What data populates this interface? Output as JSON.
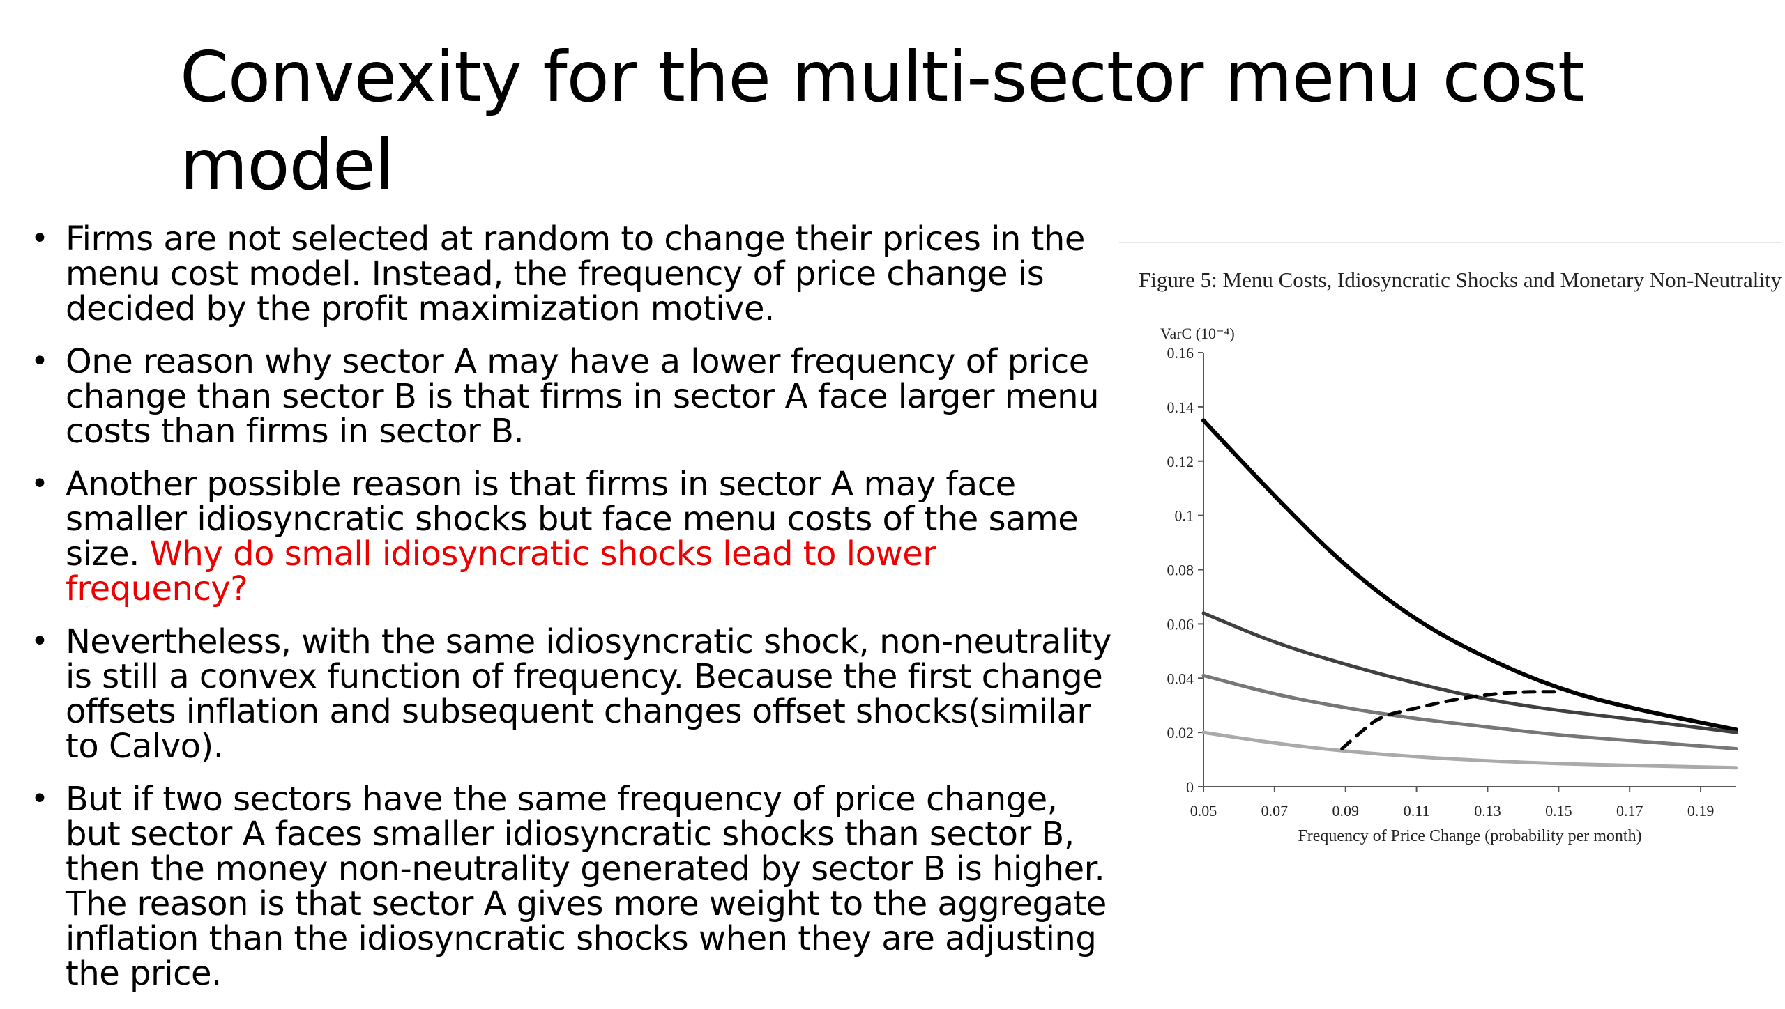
{
  "slide": {
    "title": "Convexity for the multi-sector menu cost model",
    "bullets": [
      {
        "text": "Firms are not selected at random to change their prices in the menu cost model. Instead, the frequency of price change is decided by the profit maximization motive.",
        "highlight": ""
      },
      {
        "text": "One reason why sector A may have a lower frequency of price change than sector B is that firms in sector A face larger menu costs than firms in sector B.",
        "highlight": ""
      },
      {
        "text": "Another possible reason is that firms in sector A may face smaller idiosyncratic shocks but face menu costs of the same size. ",
        "highlight": "Why do small idiosyncratic shocks lead to lower frequency?"
      },
      {
        "text": "Nevertheless, with the same idiosyncratic shock, non-neutrality is still a convex function of frequency. Because the first change offsets inflation and subsequent changes offset shocks(similar to Calvo).",
        "highlight": ""
      },
      {
        "text": "But if two sectors have the same frequency of price change, but sector A faces smaller idiosyncratic shocks than sector B, then the money non-neutrality generated by sector B is higher. The reason is that sector A gives more weight to the aggregate inflation than the idiosyncratic shocks when they are adjusting the price.",
        "highlight": ""
      }
    ],
    "highlight_color": "#ee0000"
  },
  "chart_data": {
    "type": "line",
    "title": "Figure 5: Menu Costs, Idiosyncratic Shocks and Monetary Non-Neutrality",
    "ylabel": "VarC (10⁻⁴)",
    "xlabel": "Frequency of Price Change (probability per month)",
    "xlim": [
      0.05,
      0.2
    ],
    "ylim": [
      0,
      0.16
    ],
    "x_ticks": [
      "0.05",
      "0.07",
      "0.09",
      "0.11",
      "0.13",
      "0.15",
      "0.17",
      "0.19"
    ],
    "y_ticks": [
      "0",
      "0.02",
      "0.04",
      "0.06",
      "0.08",
      "0.1",
      "0.12",
      "0.14",
      "0.16"
    ],
    "grid": false,
    "legend": "none",
    "series": [
      {
        "color": "#000000",
        "dash": false,
        "x": [
          0.05,
          0.07,
          0.09,
          0.11,
          0.13,
          0.15,
          0.17,
          0.2
        ],
        "y": [
          0.135,
          0.107,
          0.081,
          0.061,
          0.047,
          0.036,
          0.029,
          0.021
        ]
      },
      {
        "color": "#404040",
        "dash": false,
        "x": [
          0.05,
          0.07,
          0.09,
          0.11,
          0.13,
          0.15,
          0.17,
          0.2
        ],
        "y": [
          0.064,
          0.053,
          0.045,
          0.038,
          0.032,
          0.028,
          0.025,
          0.02
        ]
      },
      {
        "color": "#777777",
        "dash": false,
        "x": [
          0.05,
          0.07,
          0.09,
          0.11,
          0.13,
          0.15,
          0.17,
          0.2
        ],
        "y": [
          0.041,
          0.034,
          0.029,
          0.025,
          0.022,
          0.019,
          0.017,
          0.014
        ]
      },
      {
        "color": "#aaaaaa",
        "dash": false,
        "x": [
          0.05,
          0.07,
          0.09,
          0.11,
          0.13,
          0.15,
          0.17,
          0.2
        ],
        "y": [
          0.02,
          0.016,
          0.013,
          0.011,
          0.0095,
          0.0085,
          0.0078,
          0.007
        ]
      },
      {
        "color": "#000000",
        "dash": true,
        "x": [
          0.089,
          0.095,
          0.1,
          0.11,
          0.12,
          0.13,
          0.14,
          0.15
        ],
        "y": [
          0.014,
          0.021,
          0.026,
          0.029,
          0.032,
          0.034,
          0.035,
          0.035
        ]
      }
    ]
  }
}
